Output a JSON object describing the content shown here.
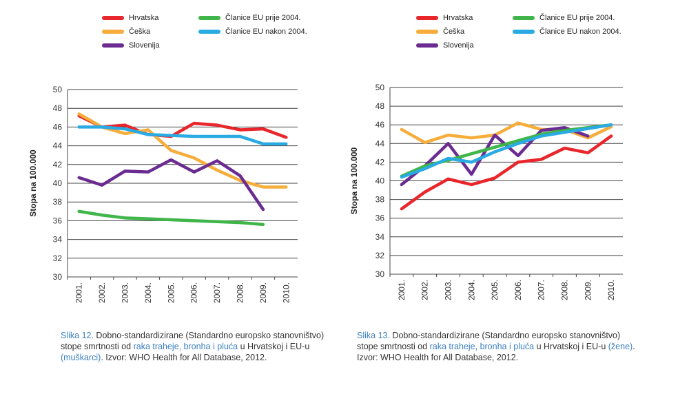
{
  "chart_data": [
    {
      "type": "line",
      "title": "",
      "xlabel": "",
      "ylabel": "Stopa na 100.000",
      "ylim": [
        30,
        50
      ],
      "yticks": [
        30,
        32,
        34,
        36,
        38,
        40,
        42,
        44,
        46,
        48,
        50
      ],
      "grid": true,
      "legend_position": "top",
      "x": [
        "2001.",
        "2002.",
        "2003.",
        "2004.",
        "2005.",
        "2006.",
        "2007.",
        "2008.",
        "2009.",
        "2010."
      ],
      "series": [
        {
          "name": "Hrvatska",
          "color": "#e8262b",
          "values": [
            47.2,
            46.0,
            46.2,
            45.2,
            45.0,
            46.4,
            46.2,
            45.7,
            45.8,
            44.9
          ]
        },
        {
          "name": "Češka",
          "color": "#f7ad3c",
          "values": [
            47.4,
            46.0,
            45.3,
            45.7,
            43.5,
            42.7,
            41.4,
            40.3,
            39.6,
            39.6
          ]
        },
        {
          "name": "Slovenija",
          "color": "#6b2c91",
          "values": [
            40.6,
            39.8,
            41.3,
            41.2,
            42.5,
            41.2,
            42.4,
            40.8,
            37.2,
            null
          ]
        },
        {
          "name": "Članice EU prije 2004.",
          "color": "#3fb54a",
          "values": [
            37.0,
            36.6,
            36.3,
            36.2,
            36.1,
            36.0,
            35.9,
            35.8,
            35.6,
            null
          ]
        },
        {
          "name": "Članice EU nakon 2004.",
          "color": "#29aae2",
          "values": [
            46.0,
            46.0,
            45.8,
            45.2,
            45.1,
            45.0,
            45.0,
            45.0,
            44.2,
            44.2
          ]
        }
      ],
      "caption": {
        "fig": "Slika 12.",
        "text1": " Dobno-standardizirane (Standardno europsko stanovništvo) stope smrtnosti od ",
        "accent1": "raka traheje, bronha i pluća",
        "text2": " u Hrvatskoj i EU-u ",
        "accent2": "(muškarci)",
        "text3": ". Izvor: WHO Health for All Database, 2012."
      }
    },
    {
      "type": "line",
      "title": "",
      "xlabel": "",
      "ylabel": "Stopa na 100.000",
      "ylim": [
        30,
        50
      ],
      "yticks": [
        30,
        32,
        34,
        36,
        38,
        40,
        42,
        44,
        46,
        48,
        50
      ],
      "grid": true,
      "legend_position": "top",
      "x": [
        "2001.",
        "2002.",
        "2003.",
        "2004.",
        "2005.",
        "2006.",
        "2007.",
        "2008.",
        "2009.",
        "2010."
      ],
      "series": [
        {
          "name": "Hrvatska",
          "color": "#e8262b",
          "values": [
            37.0,
            38.8,
            40.2,
            39.6,
            40.3,
            42.0,
            42.3,
            43.5,
            43.0,
            44.8
          ]
        },
        {
          "name": "Češka",
          "color": "#f7ad3c",
          "values": [
            45.5,
            44.1,
            44.9,
            44.6,
            44.9,
            46.2,
            45.5,
            45.5,
            44.6,
            45.8
          ]
        },
        {
          "name": "Slovenija",
          "color": "#6b2c91",
          "values": [
            39.6,
            41.6,
            44.0,
            40.7,
            44.9,
            42.7,
            45.4,
            45.7,
            44.8,
            null
          ]
        },
        {
          "name": "Članice EU prije 2004.",
          "color": "#3fb54a",
          "values": [
            40.5,
            41.6,
            42.2,
            42.9,
            43.6,
            44.3,
            45.0,
            45.4,
            45.7,
            46.0
          ]
        },
        {
          "name": "Članice EU nakon 2004.",
          "color": "#29aae2",
          "values": [
            40.4,
            41.3,
            42.4,
            42.0,
            43.1,
            44.0,
            44.8,
            45.2,
            45.6,
            46.0
          ]
        }
      ],
      "caption": {
        "fig": "Slika 13.",
        "text1": " Dobno-standardizirane (Standardno europsko stanovništvo) stope smrtnosti od ",
        "accent1": "raka traheje, bronha i pluća",
        "text2": " u Hrvatskoj i EU-u ",
        "accent2": "(žene)",
        "text3": ". Izvor: WHO Health for All Database, 2012."
      }
    }
  ]
}
